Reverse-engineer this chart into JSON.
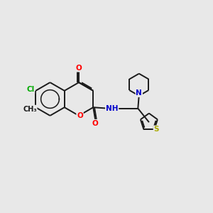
{
  "bg": "#e8e8e8",
  "bond_color": "#1a1a1a",
  "lw": 1.4,
  "atom_colors": {
    "O": "#ff0000",
    "N": "#0000cc",
    "Cl": "#00aa00",
    "S": "#aaaa00",
    "C": "#1a1a1a"
  },
  "font_size": 7.5
}
